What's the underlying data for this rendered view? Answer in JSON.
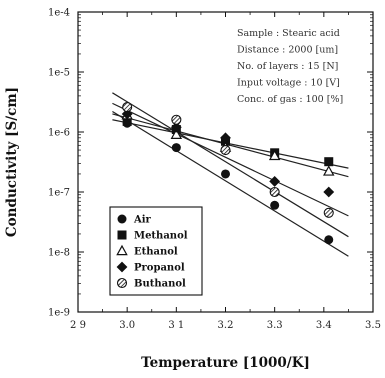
{
  "chart_data": {
    "type": "scatter",
    "xlabel": "Temperature [1000/K]",
    "ylabel": "Conductivity [S/cm]",
    "xlim": [
      2.9,
      3.5
    ],
    "ylim": [
      1e-09,
      0.0001
    ],
    "y_scale": "log",
    "x_ticks": [
      2.9,
      3.0,
      3.1,
      3.2,
      3.3,
      3.4,
      3.5
    ],
    "x_tick_labels": [
      "2 9",
      "3.0",
      "3 1",
      "3.2",
      "3.3",
      "3.4",
      "3.5"
    ],
    "y_ticks": [
      1e-09,
      1e-08,
      1e-07,
      1e-06,
      1e-05,
      0.0001
    ],
    "y_tick_labels": [
      "1e-9",
      "1e-8",
      "1e-7",
      "1e-6",
      "1e-5",
      "1e-4"
    ],
    "annotations": [
      "Sample : Stearic acid",
      "Distance : 2000 [um]",
      "No. of layers : 15 [N]",
      "Input voltage : 10 [V]",
      "Conc. of gas : 100 [%]"
    ],
    "legend_position": "bottom-left",
    "series": [
      {
        "name": "Air",
        "marker": "circle",
        "x": [
          3.0,
          3.1,
          3.2,
          3.3,
          3.41
        ],
        "y": [
          1.4e-06,
          5.5e-07,
          2e-07,
          6e-08,
          1.6e-08
        ],
        "fit": [
          [
            2.97,
            2.2e-06
          ],
          [
            3.45,
            8.5e-09
          ]
        ]
      },
      {
        "name": "Methanol",
        "marker": "square",
        "x": [
          3.0,
          3.1,
          3.2,
          3.3,
          3.41
        ],
        "y": [
          1.5e-06,
          1.1e-06,
          7e-07,
          4.5e-07,
          3.2e-07
        ],
        "fit": [
          [
            2.97,
            1.6e-06
          ],
          [
            3.45,
            2.5e-07
          ]
        ]
      },
      {
        "name": "Ethanol",
        "marker": "triangle-open",
        "x": [
          3.0,
          3.1,
          3.2,
          3.3,
          3.41
        ],
        "y": [
          1.9e-06,
          9e-07,
          5.5e-07,
          4e-07,
          2.2e-07
        ],
        "fit": [
          [
            2.97,
            2e-06
          ],
          [
            3.45,
            1.8e-07
          ]
        ]
      },
      {
        "name": "Propanol",
        "marker": "diamond",
        "x": [
          3.0,
          3.1,
          3.2,
          3.3,
          3.41
        ],
        "y": [
          2e-06,
          1.2e-06,
          8e-07,
          1.5e-07,
          1e-07
        ],
        "fit": [
          [
            2.97,
            3e-06
          ],
          [
            3.45,
            4e-08
          ]
        ]
      },
      {
        "name": "Buthanol",
        "marker": "hatched-circle",
        "x": [
          3.0,
          3.1,
          3.2,
          3.3,
          3.41
        ],
        "y": [
          2.6e-06,
          1.6e-06,
          5e-07,
          1e-07,
          4.5e-08
        ],
        "fit": [
          [
            2.97,
            4.5e-06
          ],
          [
            3.45,
            1.8e-08
          ]
        ]
      }
    ]
  }
}
